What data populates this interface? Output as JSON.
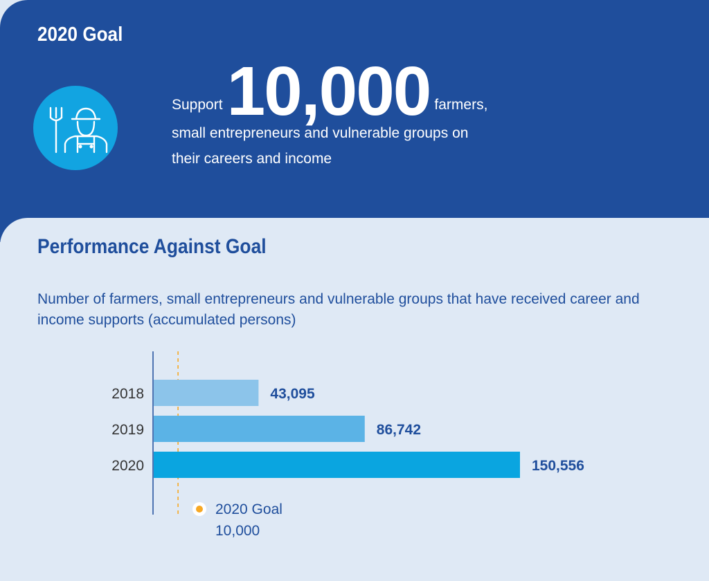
{
  "header": {
    "goal_heading": "2020 Goal",
    "support_word": "Support",
    "big_number": "10,000",
    "farmers_word": "farmers,",
    "line2": "small entrepreneurs and vulnerable groups on",
    "line3": "their careers and income"
  },
  "icon": "farmer-with-pitchfork-icon",
  "colors": {
    "header_bg": "#1f4e9c",
    "panel_bg": "#dfe9f5",
    "icon_circle": "#12a4e1",
    "bar_2018": "#8cc4ea",
    "bar_2019": "#5bb3e6",
    "bar_2020": "#0aa5e0",
    "goal_marker": "#f7a823",
    "text_blue": "#1f4e9c"
  },
  "performance": {
    "title": "Performance Against Goal",
    "description": "Number of farmers, small entrepreneurs and vulnerable groups that have received career and income supports (accumulated persons)"
  },
  "chart_data": {
    "type": "bar",
    "orientation": "horizontal",
    "categories": [
      "2018",
      "2019",
      "2020"
    ],
    "values": [
      43095,
      86742,
      150556
    ],
    "value_labels": [
      "43,095",
      "86,742",
      "150,556"
    ],
    "bar_colors": [
      "#8cc4ea",
      "#5bb3e6",
      "#0aa5e0"
    ],
    "xlim": [
      0,
      150556
    ],
    "goal": {
      "value": 10000,
      "label": "2020 Goal",
      "value_label": "10,000",
      "color": "#f7a823"
    },
    "grid": false
  }
}
